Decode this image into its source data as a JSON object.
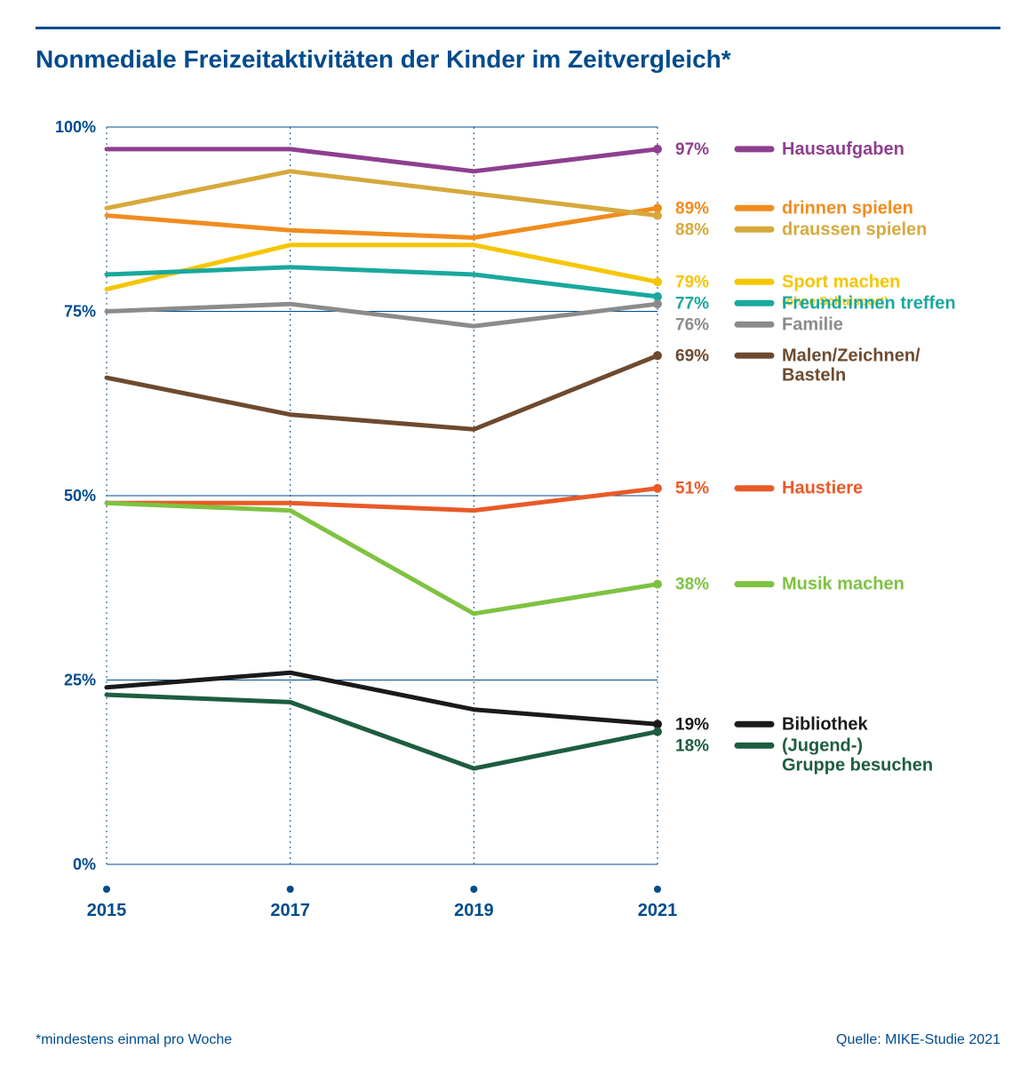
{
  "title": "Nonmediale Freizeitaktivitäten der Kinder im Zeitvergleich*",
  "footnote": "*mindestens einmal pro Woche",
  "source": "Quelle: MIKE-Studie 2021",
  "chart": {
    "type": "line",
    "x_categories": [
      "2015",
      "2017",
      "2019",
      "2021"
    ],
    "y_ticks": [
      0,
      25,
      50,
      75,
      100
    ],
    "y_tick_labels": [
      "0%",
      "25%",
      "50%",
      "75%",
      "100%"
    ],
    "ylim": [
      0,
      100
    ],
    "line_width": 5,
    "marker_radius": 5,
    "title_color": "#004b8d",
    "grid_color": "#004b8d",
    "background_color": "#ffffff",
    "x_marker_color": "#004b8d",
    "series": [
      {
        "name": "Hausaufgaben",
        "color": "#8e3f8e",
        "values": [
          97,
          97,
          94,
          97
        ],
        "end_label": "97%",
        "legend_y_offset": 0
      },
      {
        "name": "drinnen spielen",
        "color": "#f08c1e",
        "values": [
          88,
          86,
          85,
          89
        ],
        "end_label": "89%",
        "legend_y_offset": 0
      },
      {
        "name": "draussen spielen",
        "color": "#d6a93d",
        "values": [
          89,
          94,
          91,
          88
        ],
        "end_label": "88%",
        "legend_y_offset": 0
      },
      {
        "name": "Sport machen",
        "sub": "(ohne Schulsport)",
        "color": "#f5c600",
        "values": [
          78,
          84,
          84,
          79
        ],
        "end_label": "79%",
        "legend_y_offset": 0
      },
      {
        "name": "Freund:innen treffen",
        "color": "#1aa89d",
        "values": [
          80,
          81,
          80,
          77
        ],
        "end_label": "77%",
        "legend_y_offset": 0
      },
      {
        "name": "Familie",
        "color": "#8b8b8b",
        "values": [
          75,
          76,
          73,
          76
        ],
        "end_label": "76%",
        "legend_y_offset": 0
      },
      {
        "name": "Malen/Zeichnen/\nBasteln",
        "color": "#6d4a2f",
        "values": [
          66,
          61,
          59,
          69
        ],
        "end_label": "69%",
        "legend_y_offset": 0
      },
      {
        "name": "Haustiere",
        "color": "#e85a28",
        "values": [
          49,
          49,
          48,
          51
        ],
        "end_label": "51%",
        "legend_y_offset": 0
      },
      {
        "name": "Musik machen",
        "color": "#7fc241",
        "values": [
          49,
          48,
          34,
          38
        ],
        "end_label": "38%",
        "legend_y_offset": 0
      },
      {
        "name": "Bibliothek",
        "color": "#1a1a1a",
        "values": [
          24,
          26,
          21,
          19
        ],
        "end_label": "19%",
        "legend_y_offset": 0
      },
      {
        "name": "(Jugend-)\nGruppe besuchen",
        "color": "#1e5d3f",
        "values": [
          23,
          22,
          13,
          18
        ],
        "end_label": "18%",
        "legend_y_offset": 0
      }
    ]
  }
}
